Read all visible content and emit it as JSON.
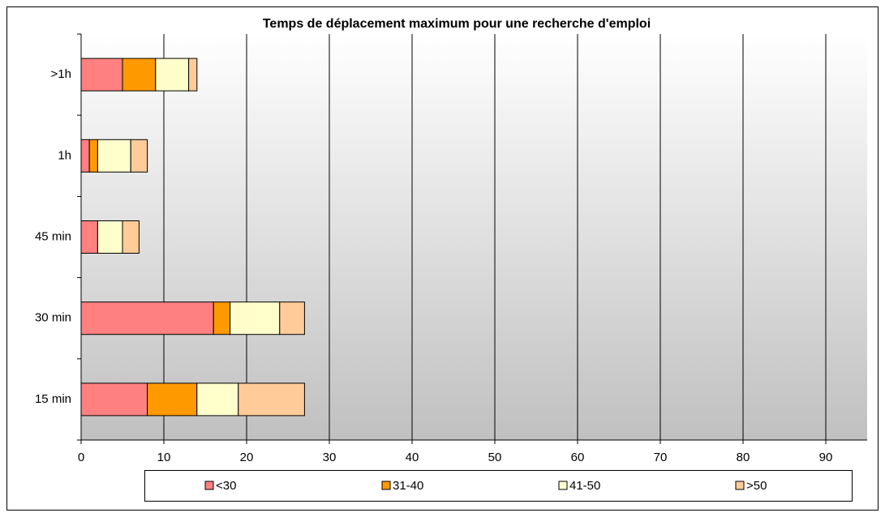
{
  "chart_data": {
    "type": "stacked-barh",
    "title": "Temps de déplacement maximum pour une recherche d'emploi",
    "categories": [
      "15 min",
      "30 min",
      "45 min",
      "1h",
      ">1h"
    ],
    "series": [
      {
        "name": "<30",
        "color": "#ff8080",
        "values": [
          8,
          16,
          2,
          1,
          5
        ]
      },
      {
        "name": "31-40",
        "color": "#ff9900",
        "values": [
          6,
          2,
          0,
          1,
          4
        ]
      },
      {
        "name": "41-50",
        "color": "#ffffcc",
        "values": [
          5,
          6,
          3,
          4,
          4
        ]
      },
      {
        "name": ">50",
        "color": "#ffcc99",
        "values": [
          8,
          3,
          2,
          2,
          1
        ]
      }
    ],
    "xlim": [
      0,
      95
    ],
    "xticks": [
      0,
      10,
      20,
      30,
      40,
      50,
      60,
      70,
      80,
      90
    ],
    "grid": true,
    "legend": "bottom"
  }
}
